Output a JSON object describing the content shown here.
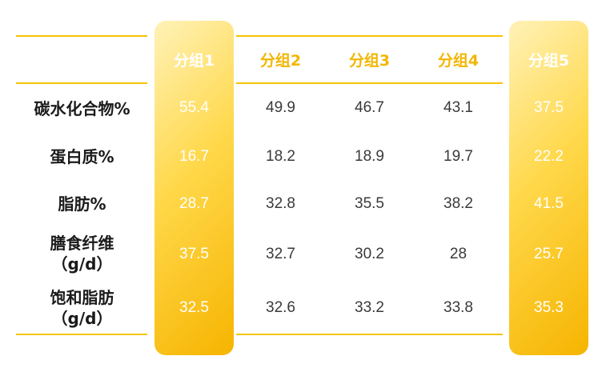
{
  "chart_data": {
    "type": "table",
    "columns": [
      "分组1",
      "分组2",
      "分组3",
      "分组4",
      "分组5"
    ],
    "highlighted_columns": [
      "分组1",
      "分组5"
    ],
    "rows": [
      {
        "label": [
          "碳水化合物%"
        ],
        "values": [
          "55.4",
          "49.9",
          "46.7",
          "43.1",
          "37.5"
        ]
      },
      {
        "label": [
          "蛋白质%"
        ],
        "values": [
          "16.7",
          "18.2",
          "18.9",
          "19.7",
          "22.2"
        ]
      },
      {
        "label": [
          "脂肪%"
        ],
        "values": [
          "28.7",
          "32.8",
          "35.5",
          "38.2",
          "41.5"
        ]
      },
      {
        "label": [
          "膳食纤维",
          "（g/d）"
        ],
        "values": [
          "37.5",
          "32.7",
          "30.2",
          "28",
          "25.7"
        ]
      },
      {
        "label": [
          "饱和脂肪",
          "（g/d）"
        ],
        "values": [
          "32.5",
          "32.6",
          "33.2",
          "33.8",
          "35.3"
        ]
      }
    ],
    "colors": {
      "accent": "#f5c400",
      "header_text": "#f2b600",
      "highlight_text": "#ffffff",
      "body_text": "#3a3a3a"
    }
  }
}
